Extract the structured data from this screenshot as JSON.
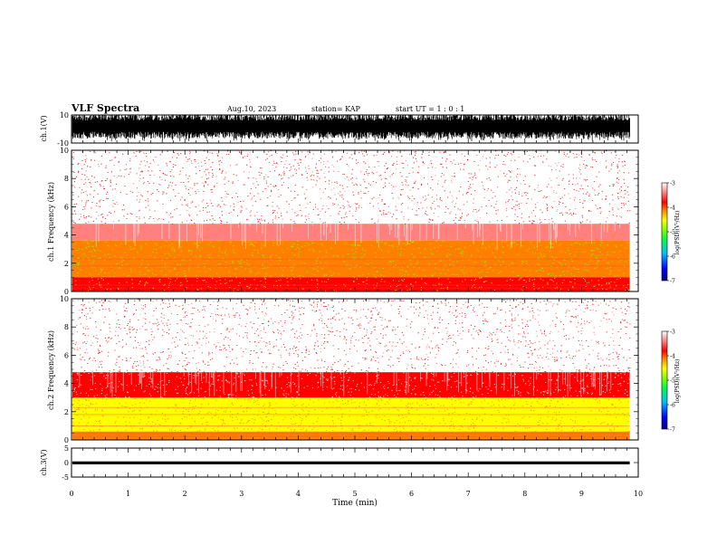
{
  "header": {
    "title": "VLF Spectra",
    "date": "Aug.10, 2023",
    "station": "station= KAP",
    "start": "start  UT =   1 : 0  : 1"
  },
  "chart_data": [
    {
      "type": "line",
      "panel": "waveform-ch1",
      "ylabel": "ch.1(V)",
      "ylim": [
        -10,
        10
      ],
      "ytick_labels": [
        "10",
        "-10"
      ],
      "xlim": [
        0,
        10
      ],
      "data_extent_x": [
        0,
        9.85
      ],
      "description_level": "saturated noisy trace spanning roughly -4 to +10 V"
    },
    {
      "type": "heatmap",
      "panel": "spectrogram-ch1",
      "ylabel": "ch.1 Frequency (kHz)",
      "ylim": [
        0,
        10
      ],
      "ytick_labels": [
        "0",
        "2",
        "4",
        "6",
        "8",
        "10"
      ],
      "xlim": [
        0,
        10
      ],
      "data_extent_x": [
        0,
        9.85
      ],
      "bands": [
        {
          "from_khz": 0.0,
          "to_khz": 1.0,
          "log_psd": -4.0
        },
        {
          "from_khz": 1.0,
          "to_khz": 3.6,
          "log_psd": -4.5
        },
        {
          "from_khz": 3.6,
          "to_khz": 4.8,
          "log_psd": -3.6
        },
        {
          "from_khz": 4.8,
          "to_khz": 10.0,
          "log_psd": -3.15
        }
      ]
    },
    {
      "type": "heatmap",
      "panel": "spectrogram-ch2",
      "ylabel": "ch.2 Frequency (kHz)",
      "ylim": [
        0,
        10
      ],
      "ytick_labels": [
        "0",
        "2",
        "4",
        "6",
        "8",
        "10"
      ],
      "xlim": [
        0,
        10
      ],
      "data_extent_x": [
        0,
        9.85
      ],
      "bands": [
        {
          "from_khz": 0.0,
          "to_khz": 0.6,
          "log_psd": -4.2
        },
        {
          "from_khz": 0.6,
          "to_khz": 3.0,
          "log_psd": -5.0
        },
        {
          "from_khz": 3.0,
          "to_khz": 4.8,
          "log_psd": -3.7
        },
        {
          "from_khz": 4.8,
          "to_khz": 10.0,
          "log_psd": -3.2
        }
      ]
    },
    {
      "type": "line",
      "panel": "waveform-ch3",
      "ylabel": "ch.3(V)",
      "ylim": [
        -5,
        5
      ],
      "ytick_labels": [
        "5",
        "0",
        "-5"
      ],
      "xlim": [
        0,
        10
      ],
      "data_extent_x": [
        0,
        9.85
      ],
      "level_v": [
        -0.6,
        0.4
      ]
    }
  ],
  "xaxis": {
    "label": "Time (min)",
    "range": [
      0,
      10
    ],
    "tick_labels": [
      "0",
      "1",
      "2",
      "3",
      "4",
      "5",
      "6",
      "7",
      "8",
      "9",
      "10"
    ]
  },
  "colorbar": {
    "label": "log(PSD)(V²/Hz)",
    "range": [
      -7,
      -3
    ],
    "tick_labels": [
      "-3",
      "-4",
      "-5",
      "-6",
      "-7"
    ],
    "colors": [
      "#000080",
      "#0000ff",
      "#00c0ff",
      "#00ff40",
      "#80ff00",
      "#ffff00",
      "#ff8000",
      "#ff0000",
      "#ff8080",
      "#ffffff"
    ]
  }
}
